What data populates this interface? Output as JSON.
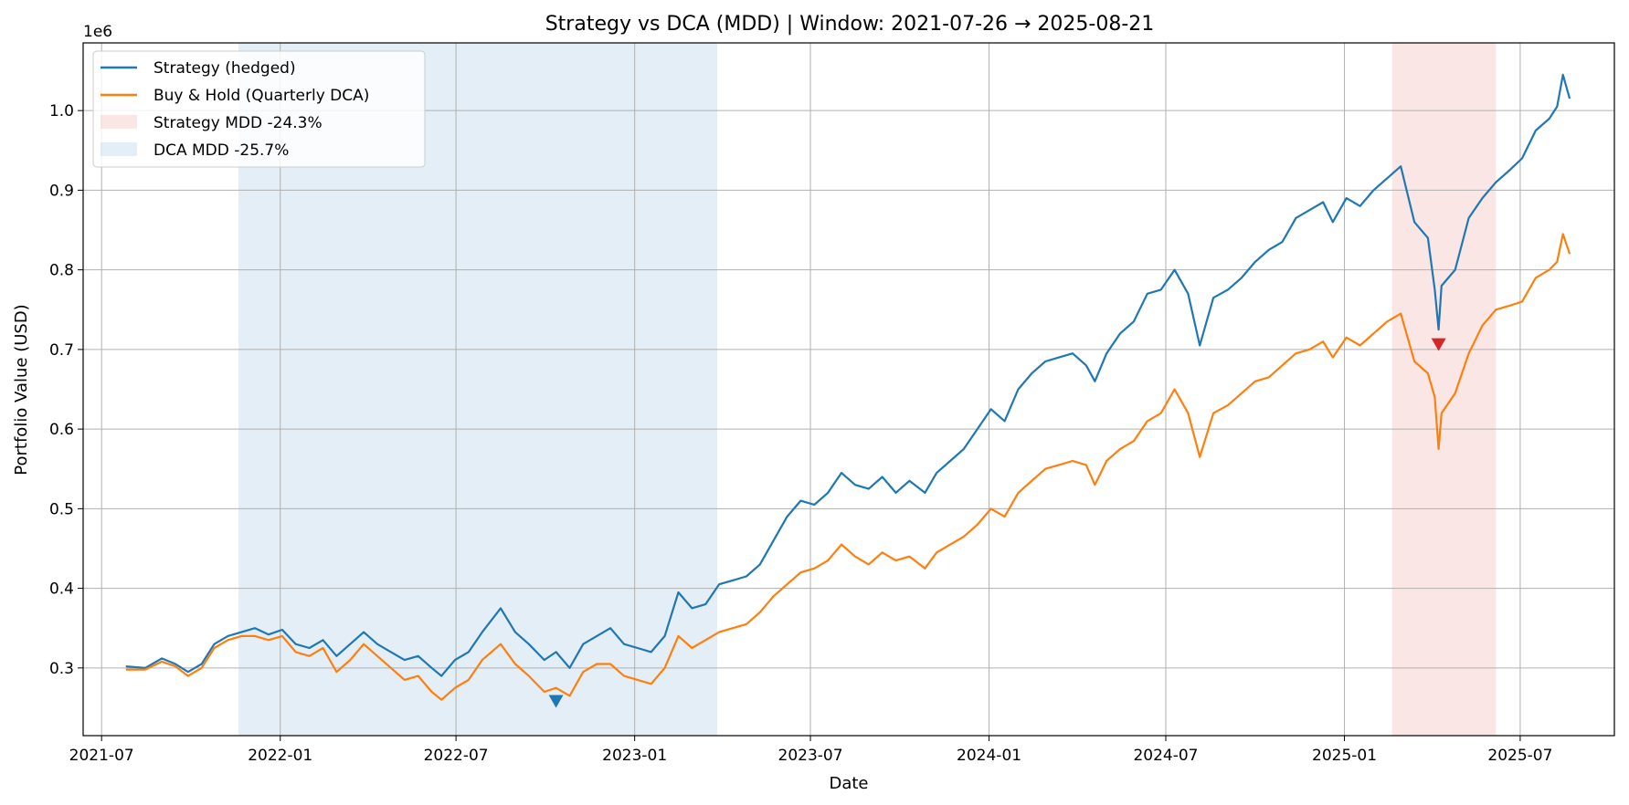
{
  "chart_data": {
    "type": "line",
    "title": "Strategy vs DCA (MDD)  | Window: 2021-07-26 → 2025-08-21",
    "xlabel": "Date",
    "ylabel": "Portfolio Value (USD)",
    "y_offset_text": "1e6",
    "xlim": [
      "2021-06-12",
      "2025-10-06"
    ],
    "ylim": [
      0.215,
      1.085
    ],
    "x_ticks": [
      "2021-07",
      "2022-01",
      "2022-07",
      "2023-01",
      "2023-07",
      "2024-01",
      "2024-07",
      "2025-01",
      "2025-07"
    ],
    "y_ticks": [
      0.3,
      0.4,
      0.5,
      0.6,
      0.7,
      0.8,
      0.9,
      1.0
    ],
    "y_tick_labels": [
      "0.3",
      "0.4",
      "0.5",
      "0.6",
      "0.7",
      "0.8",
      "0.9",
      "1.0"
    ],
    "grid": true,
    "legend_position": "top-left",
    "series": [
      {
        "name": "Strategy (hedged)",
        "color": "#1f77b4",
        "x": [
          "2021-07-26",
          "2021-08-15",
          "2021-09-01",
          "2021-09-15",
          "2021-09-28",
          "2021-10-12",
          "2021-10-25",
          "2021-11-08",
          "2021-11-22",
          "2021-12-06",
          "2021-12-20",
          "2022-01-03",
          "2022-01-17",
          "2022-01-31",
          "2022-02-14",
          "2022-02-28",
          "2022-03-14",
          "2022-03-28",
          "2022-04-11",
          "2022-04-25",
          "2022-05-09",
          "2022-05-23",
          "2022-06-06",
          "2022-06-16",
          "2022-06-30",
          "2022-07-14",
          "2022-07-28",
          "2022-08-16",
          "2022-08-31",
          "2022-09-14",
          "2022-09-30",
          "2022-10-12",
          "2022-10-26",
          "2022-11-09",
          "2022-11-23",
          "2022-12-07",
          "2022-12-21",
          "2023-01-04",
          "2023-01-18",
          "2023-02-01",
          "2023-02-15",
          "2023-03-01",
          "2023-03-15",
          "2023-03-29",
          "2023-04-12",
          "2023-04-26",
          "2023-05-10",
          "2023-05-24",
          "2023-06-07",
          "2023-06-21",
          "2023-07-05",
          "2023-07-19",
          "2023-08-02",
          "2023-08-16",
          "2023-08-30",
          "2023-09-13",
          "2023-09-27",
          "2023-10-11",
          "2023-10-27",
          "2023-11-08",
          "2023-11-22",
          "2023-12-06",
          "2023-12-20",
          "2024-01-03",
          "2024-01-17",
          "2024-01-31",
          "2024-02-14",
          "2024-02-28",
          "2024-03-13",
          "2024-03-27",
          "2024-04-10",
          "2024-04-19",
          "2024-05-01",
          "2024-05-15",
          "2024-05-29",
          "2024-06-12",
          "2024-06-26",
          "2024-07-10",
          "2024-07-24",
          "2024-08-05",
          "2024-08-19",
          "2024-09-03",
          "2024-09-17",
          "2024-10-01",
          "2024-10-15",
          "2024-10-29",
          "2024-11-12",
          "2024-11-26",
          "2024-12-10",
          "2024-12-20",
          "2025-01-03",
          "2025-01-17",
          "2025-01-31",
          "2025-02-14",
          "2025-02-28",
          "2025-03-14",
          "2025-03-28",
          "2025-04-04",
          "2025-04-08",
          "2025-04-11",
          "2025-04-25",
          "2025-05-09",
          "2025-05-23",
          "2025-06-06",
          "2025-06-20",
          "2025-07-03",
          "2025-07-17",
          "2025-07-31",
          "2025-08-08",
          "2025-08-14",
          "2025-08-21"
        ],
        "y": [
          0.302,
          0.3,
          0.312,
          0.305,
          0.295,
          0.305,
          0.33,
          0.34,
          0.345,
          0.35,
          0.342,
          0.348,
          0.33,
          0.325,
          0.335,
          0.315,
          0.33,
          0.345,
          0.33,
          0.32,
          0.31,
          0.315,
          0.3,
          0.29,
          0.31,
          0.32,
          0.345,
          0.375,
          0.345,
          0.33,
          0.31,
          0.32,
          0.3,
          0.33,
          0.34,
          0.35,
          0.33,
          0.325,
          0.32,
          0.34,
          0.395,
          0.375,
          0.38,
          0.405,
          0.41,
          0.415,
          0.43,
          0.46,
          0.49,
          0.51,
          0.505,
          0.52,
          0.545,
          0.53,
          0.525,
          0.54,
          0.52,
          0.535,
          0.52,
          0.545,
          0.56,
          0.575,
          0.6,
          0.625,
          0.61,
          0.65,
          0.67,
          0.685,
          0.69,
          0.695,
          0.68,
          0.66,
          0.695,
          0.72,
          0.735,
          0.77,
          0.775,
          0.8,
          0.77,
          0.705,
          0.765,
          0.775,
          0.79,
          0.81,
          0.825,
          0.835,
          0.865,
          0.875,
          0.885,
          0.86,
          0.89,
          0.88,
          0.9,
          0.915,
          0.93,
          0.86,
          0.84,
          0.775,
          0.725,
          0.78,
          0.8,
          0.865,
          0.89,
          0.91,
          0.925,
          0.94,
          0.975,
          0.99,
          1.005,
          1.045,
          1.015
        ]
      },
      {
        "name": "Buy & Hold (Quarterly DCA)",
        "color": "#ff7f0e",
        "x": [
          "2021-07-26",
          "2021-08-15",
          "2021-09-01",
          "2021-09-15",
          "2021-09-28",
          "2021-10-12",
          "2021-10-25",
          "2021-11-08",
          "2021-11-22",
          "2021-12-06",
          "2021-12-20",
          "2022-01-03",
          "2022-01-17",
          "2022-01-31",
          "2022-02-14",
          "2022-02-28",
          "2022-03-14",
          "2022-03-28",
          "2022-04-11",
          "2022-04-25",
          "2022-05-09",
          "2022-05-23",
          "2022-06-06",
          "2022-06-16",
          "2022-06-30",
          "2022-07-14",
          "2022-07-28",
          "2022-08-16",
          "2022-08-31",
          "2022-09-14",
          "2022-09-30",
          "2022-10-12",
          "2022-10-26",
          "2022-11-09",
          "2022-11-23",
          "2022-12-07",
          "2022-12-21",
          "2023-01-04",
          "2023-01-18",
          "2023-02-01",
          "2023-02-15",
          "2023-03-01",
          "2023-03-15",
          "2023-03-29",
          "2023-04-12",
          "2023-04-26",
          "2023-05-10",
          "2023-05-24",
          "2023-06-07",
          "2023-06-21",
          "2023-07-05",
          "2023-07-19",
          "2023-08-02",
          "2023-08-16",
          "2023-08-30",
          "2023-09-13",
          "2023-09-27",
          "2023-10-11",
          "2023-10-27",
          "2023-11-08",
          "2023-11-22",
          "2023-12-06",
          "2023-12-20",
          "2024-01-03",
          "2024-01-17",
          "2024-01-31",
          "2024-02-14",
          "2024-02-28",
          "2024-03-13",
          "2024-03-27",
          "2024-04-10",
          "2024-04-19",
          "2024-05-01",
          "2024-05-15",
          "2024-05-29",
          "2024-06-12",
          "2024-06-26",
          "2024-07-10",
          "2024-07-24",
          "2024-08-05",
          "2024-08-19",
          "2024-09-03",
          "2024-09-17",
          "2024-10-01",
          "2024-10-15",
          "2024-10-29",
          "2024-11-12",
          "2024-11-26",
          "2024-12-10",
          "2024-12-20",
          "2025-01-03",
          "2025-01-17",
          "2025-01-31",
          "2025-02-14",
          "2025-02-28",
          "2025-03-14",
          "2025-03-28",
          "2025-04-04",
          "2025-04-08",
          "2025-04-11",
          "2025-04-25",
          "2025-05-09",
          "2025-05-23",
          "2025-06-06",
          "2025-06-20",
          "2025-07-03",
          "2025-07-17",
          "2025-07-31",
          "2025-08-08",
          "2025-08-14",
          "2025-08-21"
        ],
        "y": [
          0.298,
          0.298,
          0.308,
          0.302,
          0.29,
          0.3,
          0.325,
          0.335,
          0.34,
          0.34,
          0.335,
          0.34,
          0.32,
          0.315,
          0.325,
          0.295,
          0.31,
          0.33,
          0.315,
          0.3,
          0.285,
          0.29,
          0.27,
          0.26,
          0.275,
          0.285,
          0.31,
          0.33,
          0.305,
          0.29,
          0.27,
          0.275,
          0.265,
          0.295,
          0.305,
          0.305,
          0.29,
          0.285,
          0.28,
          0.3,
          0.34,
          0.325,
          0.335,
          0.345,
          0.35,
          0.355,
          0.37,
          0.39,
          0.405,
          0.42,
          0.425,
          0.435,
          0.455,
          0.44,
          0.43,
          0.445,
          0.435,
          0.44,
          0.425,
          0.445,
          0.455,
          0.465,
          0.48,
          0.5,
          0.49,
          0.52,
          0.535,
          0.55,
          0.555,
          0.56,
          0.555,
          0.53,
          0.56,
          0.575,
          0.585,
          0.61,
          0.62,
          0.65,
          0.62,
          0.565,
          0.62,
          0.63,
          0.645,
          0.66,
          0.665,
          0.68,
          0.695,
          0.7,
          0.71,
          0.69,
          0.715,
          0.705,
          0.72,
          0.735,
          0.745,
          0.685,
          0.67,
          0.64,
          0.575,
          0.62,
          0.645,
          0.695,
          0.73,
          0.75,
          0.755,
          0.76,
          0.79,
          0.8,
          0.81,
          0.845,
          0.82
        ]
      }
    ],
    "shaded_regions": [
      {
        "label": "Strategy MDD -24.3%",
        "x_start": "2025-02-19",
        "x_end": "2025-06-06",
        "color": "#f4b6b6",
        "opacity": 0.35
      },
      {
        "label": "DCA MDD -25.7%",
        "x_start": "2021-11-19",
        "x_end": "2023-03-27",
        "color": "#a6c8e0",
        "opacity": 0.3
      }
    ],
    "markers": [
      {
        "series": "Strategy (hedged)",
        "x": "2025-04-08",
        "y": 0.706,
        "color": "#d62728",
        "shape": "triangle-down"
      },
      {
        "series": "Buy & Hold (Quarterly DCA)",
        "x": "2022-10-12",
        "y": 0.258,
        "color": "#1f77b4",
        "shape": "triangle-down"
      }
    ]
  }
}
